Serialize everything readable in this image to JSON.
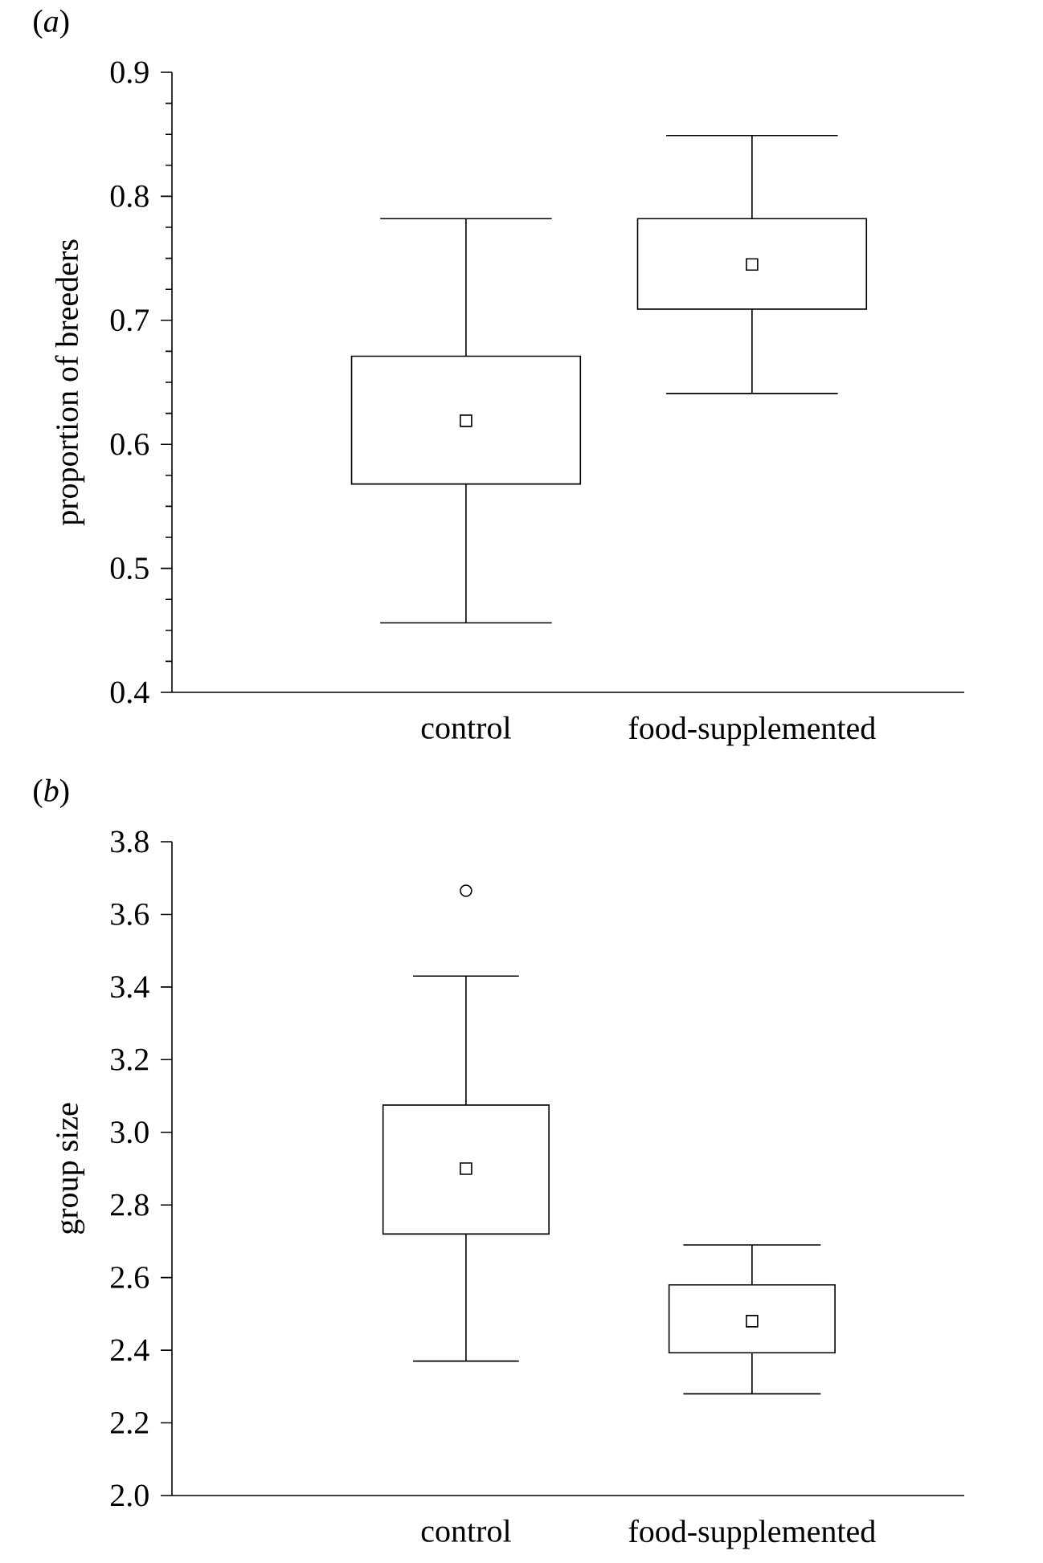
{
  "chart_data": [
    {
      "type": "box",
      "annotations": [
        "(*a*)"
      ],
      "ylabel": "proportion of breeders",
      "categories": [
        "control",
        "food-supplemented"
      ],
      "boxes": [
        {
          "low": 0.456,
          "q1": 0.568,
          "median": 0.619,
          "q3": 0.671,
          "high": 0.782
        },
        {
          "low": 0.641,
          "q1": 0.709,
          "median": 0.745,
          "q3": 0.782,
          "high": 0.849
        }
      ],
      "ylim": [
        0.4,
        0.9
      ],
      "yticks": [
        0.4,
        {
          "value": 0.425,
          "label": null
        },
        {
          "value": 0.45,
          "label": null
        },
        {
          "value": 0.475,
          "label": null
        },
        0.5,
        {
          "value": 0.525,
          "label": null
        },
        {
          "value": 0.55,
          "label": null
        },
        {
          "value": 0.575,
          "label": null
        },
        0.6,
        {
          "value": 0.625,
          "label": null
        },
        {
          "value": 0.65,
          "label": null
        },
        {
          "value": 0.675,
          "label": null
        },
        0.7,
        {
          "value": 0.725,
          "label": null
        },
        {
          "value": 0.75,
          "label": null
        },
        {
          "value": 0.775,
          "label": null
        },
        0.8,
        {
          "value": 0.825,
          "label": null
        },
        {
          "value": 0.85,
          "label": null
        },
        {
          "value": 0.875,
          "label": null
        },
        0.9
      ]
    },
    {
      "type": "box",
      "annotations": [
        "(*b*)"
      ],
      "ylabel": "group size",
      "categories": [
        "control",
        "food-supplemented"
      ],
      "boxes": [
        {
          "low": 2.37,
          "q1": 2.72,
          "median": 2.9,
          "q3": 3.075,
          "high": 3.43,
          "outliers": [
            3.665
          ]
        },
        {
          "low": 2.28,
          "q1": 2.393,
          "median": 2.48,
          "q3": 2.58,
          "high": 2.69
        }
      ],
      "ylim": [
        2.0,
        3.8
      ],
      "yticks": [
        {
          "value": 2.0,
          "label": "2.0"
        },
        2.2,
        2.4,
        2.6,
        2.8,
        {
          "value": 3.0,
          "label": "3.0"
        },
        3.2,
        3.4,
        3.6,
        3.8
      ]
    }
  ]
}
